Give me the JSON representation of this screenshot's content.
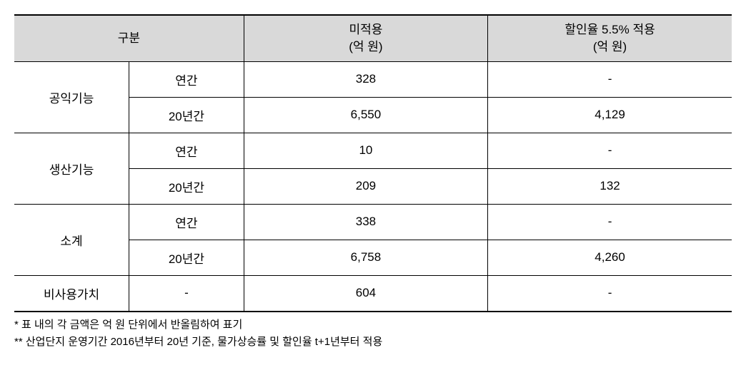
{
  "table": {
    "header_bg": "#d9d9d9",
    "border_color": "#000000",
    "columns": {
      "category_label": "구분",
      "col_no_apply_line1": "미적용",
      "col_no_apply_line2": "(억 원)",
      "col_discount_line1": "할인율 5.5% 적용",
      "col_discount_line2": "(억 원)"
    },
    "rows": {
      "public_function": {
        "label": "공익기능",
        "annual": {
          "period": "연간",
          "no_apply": "328",
          "discount": "-"
        },
        "twenty": {
          "period": "20년간",
          "no_apply": "6,550",
          "discount": "4,129"
        }
      },
      "production_function": {
        "label": "생산기능",
        "annual": {
          "period": "연간",
          "no_apply": "10",
          "discount": "-"
        },
        "twenty": {
          "period": "20년간",
          "no_apply": "209",
          "discount": "132"
        }
      },
      "subtotal": {
        "label": "소계",
        "annual": {
          "period": "연간",
          "no_apply": "338",
          "discount": "-"
        },
        "twenty": {
          "period": "20년간",
          "no_apply": "6,758",
          "discount": "4,260"
        }
      },
      "nonuse_value": {
        "label": "비사용가치",
        "period": "-",
        "no_apply": "604",
        "discount": "-"
      }
    }
  },
  "footnotes": {
    "note1": "* 표 내의 각 금액은 억 원 단위에서 반올림하여 표기",
    "note2": "** 산업단지 운영기간 2016년부터 20년 기준, 물가상승률 및 할인율 t+1년부터 적용"
  }
}
